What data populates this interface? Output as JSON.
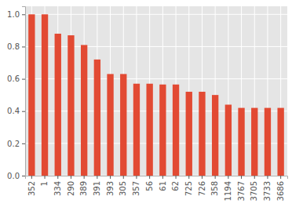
{
  "chart_data": {
    "type": "bar",
    "categories": [
      "352",
      "1",
      "334",
      "290",
      "389",
      "391",
      "393",
      "305",
      "357",
      "56",
      "61",
      "62",
      "725",
      "726",
      "358",
      "1194",
      "3767",
      "3705",
      "3733",
      "3686"
    ],
    "values": [
      1.0,
      1.0,
      0.88,
      0.87,
      0.81,
      0.72,
      0.63,
      0.63,
      0.57,
      0.57,
      0.565,
      0.565,
      0.52,
      0.52,
      0.5,
      0.44,
      0.42,
      0.42,
      0.42,
      0.42
    ],
    "color": "#e24a33",
    "ylim": [
      0,
      1.05
    ],
    "yticks": [
      {
        "value": 0,
        "label": "0.0"
      },
      {
        "value": 0.2,
        "label": "0.2"
      },
      {
        "value": 0.4,
        "label": "0.4"
      },
      {
        "value": 0.6,
        "label": "0.6"
      },
      {
        "value": 0.8,
        "label": "0.8"
      },
      {
        "value": 1.0,
        "label": "1.0"
      }
    ],
    "grid": true
  }
}
